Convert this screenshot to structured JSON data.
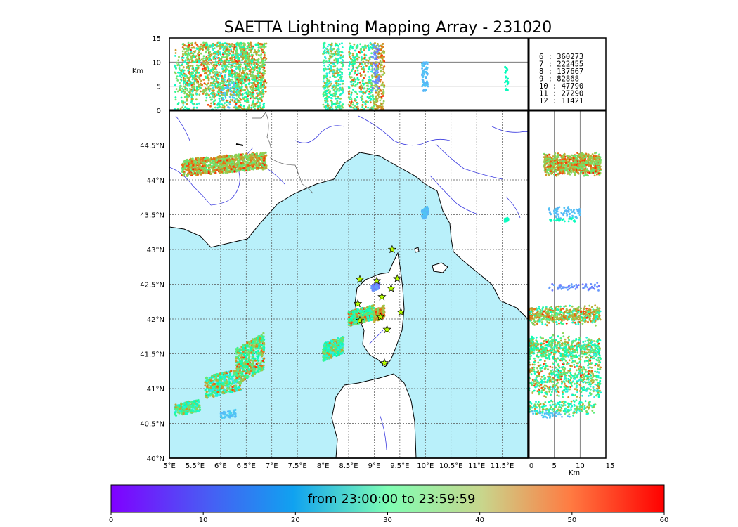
{
  "chart_data": {
    "type": "scatter",
    "title": "SAETTA Lightning Mapping Array - 231020",
    "map": {
      "lon_range": [
        5,
        12
      ],
      "lat_range": [
        40,
        45
      ],
      "lon_ticks": [
        "5°E",
        "5.5°E",
        "6°E",
        "6.5°E",
        "7°E",
        "7.5°E",
        "8°E",
        "8.5°E",
        "9°E",
        "9.5°E",
        "10°E",
        "10.5°E",
        "11°E",
        "11.5°E"
      ],
      "lat_ticks": [
        "40°N",
        "40.5°N",
        "41°N",
        "41.5°N",
        "42°N",
        "42.5°N",
        "43°N",
        "43.5°N",
        "44°N",
        "44.5°N"
      ],
      "grid": true,
      "sea_color": "#b9f0fa"
    },
    "altitude_panels": {
      "unit_label": "Km",
      "alt_range": [
        0,
        15
      ],
      "top_yticks": [
        "15",
        "10",
        "5",
        "0"
      ],
      "right_xticks": [
        "0",
        "5",
        "10",
        "15"
      ]
    },
    "stations": [
      [
        9.35,
        43.0
      ],
      [
        8.72,
        42.57
      ],
      [
        9.05,
        42.55
      ],
      [
        9.45,
        42.58
      ],
      [
        9.33,
        42.44
      ],
      [
        9.15,
        42.32
      ],
      [
        8.68,
        42.22
      ],
      [
        9.12,
        42.03
      ],
      [
        9.52,
        42.1
      ],
      [
        8.72,
        41.98
      ],
      [
        9.25,
        41.85
      ],
      [
        9.2,
        41.37
      ]
    ],
    "clusters": [
      {
        "name": "north-coast-west",
        "lon": [
          5.25,
          6.9
        ],
        "lat": [
          44.05,
          44.4
        ],
        "alt": [
          3,
          14
        ],
        "time": [
          40,
          60
        ],
        "n": 900
      },
      {
        "name": "west-med-mid",
        "lon": [
          8.0,
          8.4
        ],
        "lat": [
          41.4,
          41.75
        ],
        "alt": [
          0,
          14
        ],
        "time": [
          15,
          55
        ],
        "n": 350
      },
      {
        "name": "corsica-sw",
        "lon": [
          8.5,
          9.0
        ],
        "lat": [
          41.9,
          42.2
        ],
        "alt": [
          0,
          14
        ],
        "time": [
          20,
          60
        ],
        "n": 350
      },
      {
        "name": "corsica-ne",
        "lon": [
          9.0,
          9.2
        ],
        "lat": [
          41.95,
          42.2
        ],
        "alt": [
          0,
          14
        ],
        "time": [
          45,
          60
        ],
        "n": 200
      },
      {
        "name": "corsica-n",
        "lon": [
          8.95,
          9.1
        ],
        "lat": [
          42.4,
          42.52
        ],
        "alt": [
          4,
          14
        ],
        "time": [
          2,
          8
        ],
        "n": 60
      },
      {
        "name": "ligurian-cell",
        "lon": [
          9.93,
          10.05
        ],
        "lat": [
          43.42,
          43.62
        ],
        "alt": [
          4,
          10
        ],
        "time": [
          8,
          12
        ],
        "n": 80
      },
      {
        "name": "east-cell",
        "lon": [
          11.55,
          11.62
        ],
        "lat": [
          43.4,
          43.46
        ],
        "alt": [
          4,
          9
        ],
        "time": [
          25,
          30
        ],
        "n": 30
      },
      {
        "name": "balearic-band-ne",
        "lon": [
          6.3,
          6.85
        ],
        "lat": [
          41.05,
          41.8
        ],
        "alt": [
          0,
          14
        ],
        "time": [
          25,
          60
        ],
        "n": 450
      },
      {
        "name": "balearic-band-sw",
        "lon": [
          5.7,
          6.4
        ],
        "lat": [
          40.85,
          41.3
        ],
        "alt": [
          0,
          14
        ],
        "time": [
          15,
          60
        ],
        "n": 350
      },
      {
        "name": "balearic-sw-tail",
        "lon": [
          5.1,
          5.6
        ],
        "lat": [
          40.6,
          40.85
        ],
        "alt": [
          0,
          13
        ],
        "time": [
          20,
          55
        ],
        "n": 200
      },
      {
        "name": "south-small",
        "lon": [
          6.0,
          6.3
        ],
        "lat": [
          40.55,
          40.7
        ],
        "alt": [
          0,
          8
        ],
        "time": [
          8,
          15
        ],
        "n": 40
      }
    ],
    "counts": [
      {
        "label": " 6 :  360273",
        "color": "#000000"
      },
      {
        "label": " 7 :  222455",
        "color": "#ff0000"
      },
      {
        "label": " 8 :  137667",
        "color": "#000000"
      },
      {
        "label": " 9 :   82868",
        "color": "#000000"
      },
      {
        "label": "10 :   47790",
        "color": "#000000"
      },
      {
        "label": "11 :   27290",
        "color": "#000000"
      },
      {
        "label": "12 :   11421",
        "color": "#000000"
      }
    ],
    "colorbar": {
      "label": "from 23:00:00 to 23:59:59",
      "range": [
        0,
        60
      ],
      "ticks": [
        "0",
        "10",
        "20",
        "30",
        "40",
        "50",
        "60"
      ],
      "colormap": "rainbow"
    }
  }
}
